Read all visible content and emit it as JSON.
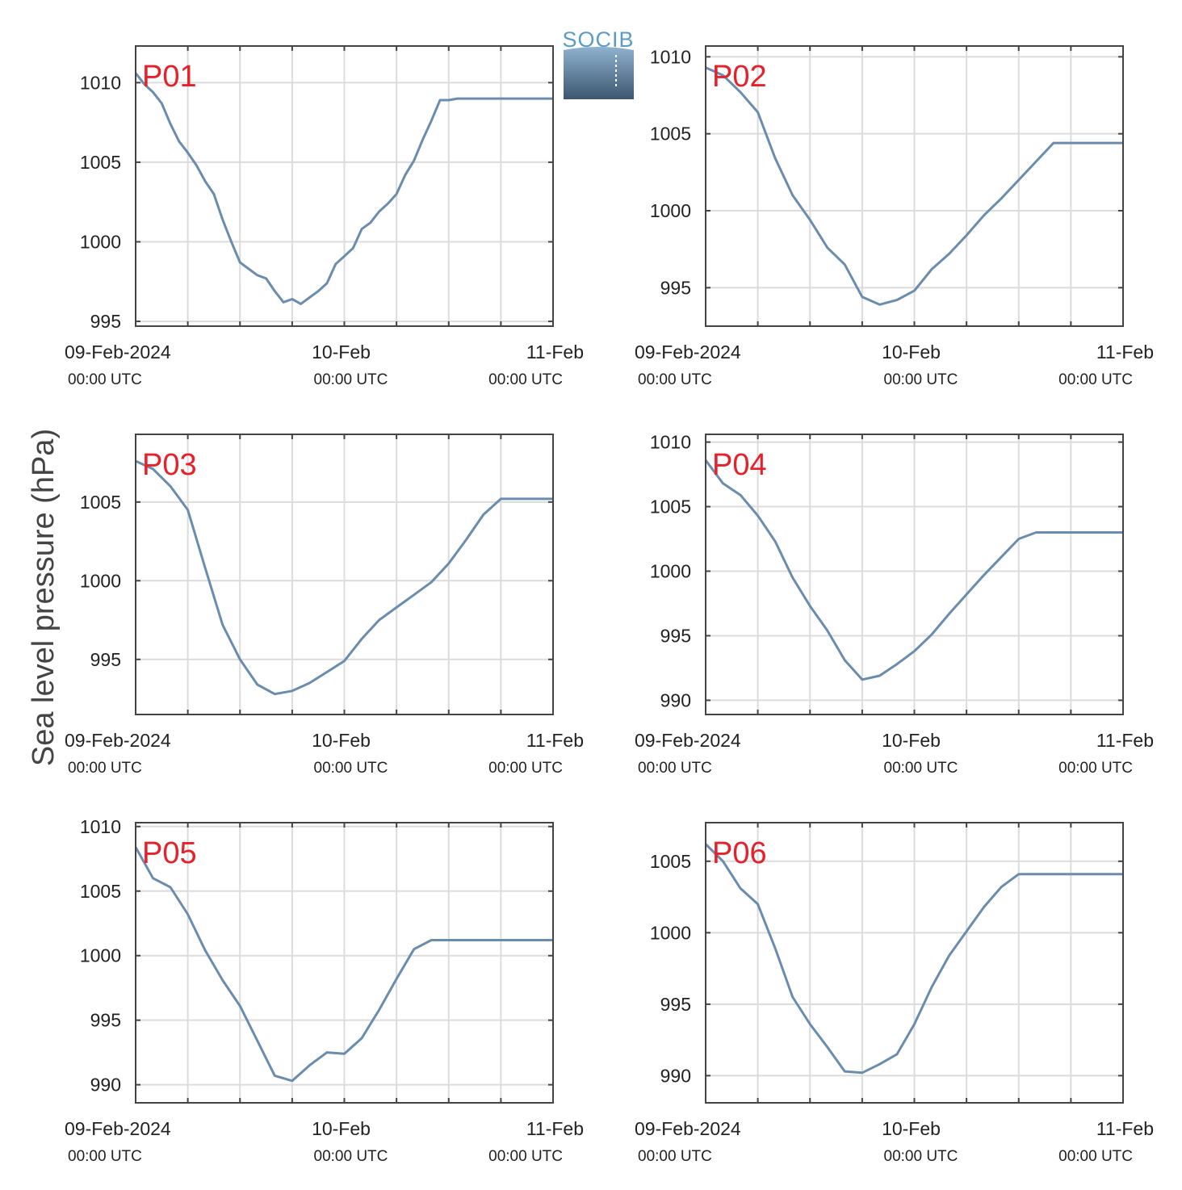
{
  "ylabel": "Sea level pressure (hPa)",
  "logo": {
    "text": "SOCIB",
    "color": "#5a9cc8"
  },
  "colors": {
    "series": "#6a8caf",
    "panel_label": "#e8202a",
    "grid": "#dcdcdc",
    "axis": "#444444"
  },
  "x_axis": {
    "range": [
      "2024-02-09T00:00",
      "2024-02-11T00:00"
    ],
    "gridlines_every_hours": 6,
    "ticks": [
      {
        "date": "09-Feb-2024",
        "time": "00:00 UTC",
        "hours": 0
      },
      {
        "date": "10-Feb",
        "time": "00:00 UTC",
        "hours": 24
      },
      {
        "date": "11-Feb",
        "time": "00:00 UTC",
        "hours": 48
      }
    ]
  },
  "chart_data": [
    {
      "type": "line",
      "label": "P01",
      "ylim": [
        994.7,
        1012.3
      ],
      "yticks": [
        995,
        1000,
        1005,
        1010
      ],
      "x_hours": [
        0,
        1,
        2,
        3,
        4,
        5,
        6,
        7,
        8,
        9,
        10,
        11,
        12,
        13,
        14,
        15,
        16,
        17,
        18,
        19,
        20,
        21,
        22,
        23,
        24,
        25,
        26,
        27,
        28,
        29,
        30,
        31,
        32,
        33,
        34,
        35,
        36,
        37,
        38,
        39,
        40,
        41,
        42,
        43,
        44,
        45,
        46,
        47,
        48
      ],
      "values": [
        1010.6,
        1009.9,
        1009.4,
        1008.7,
        1007.4,
        1006.3,
        1005.6,
        1004.8,
        1003.8,
        1003.0,
        1001.4,
        1000.0,
        998.7,
        998.3,
        997.9,
        997.7,
        996.9,
        996.2,
        996.4,
        996.1,
        996.5,
        996.9,
        997.4,
        998.6,
        999.1,
        999.6,
        1000.8,
        1001.2,
        1001.9,
        1002.4,
        1003.0,
        1004.2,
        1005.1,
        1006.4,
        1007.6,
        1008.9,
        1008.9,
        1009,
        1009,
        1009,
        1009,
        1009,
        1009,
        1009,
        1009,
        1009,
        1009,
        1009,
        1009
      ]
    },
    {
      "type": "line",
      "label": "P02",
      "ylim": [
        992.5,
        1010.7
      ],
      "yticks": [
        995,
        1000,
        1005,
        1010
      ],
      "x_hours": [
        0,
        2,
        4,
        6,
        8,
        10,
        12,
        14,
        16,
        18,
        20,
        22,
        24,
        26,
        28,
        30,
        32,
        34,
        36,
        38,
        40,
        42,
        44,
        46,
        48
      ],
      "values": [
        1009.3,
        1008.8,
        1007.7,
        1006.4,
        1003.4,
        1001.0,
        999.4,
        997.6,
        996.5,
        994.4,
        993.9,
        994.2,
        994.8,
        996.2,
        997.2,
        998.4,
        999.7,
        1000.8,
        1002.0,
        1003.2,
        1004.4,
        1004.4,
        1004.4,
        1004.4,
        1004.4
      ]
    },
    {
      "type": "line",
      "label": "P03",
      "ylim": [
        991.5,
        1009.3
      ],
      "yticks": [
        995,
        1000,
        1005
      ],
      "x_hours": [
        0,
        2,
        4,
        6,
        8,
        10,
        12,
        14,
        16,
        18,
        20,
        22,
        24,
        26,
        28,
        30,
        32,
        34,
        36,
        38,
        40,
        42,
        44,
        46,
        48
      ],
      "values": [
        1007.6,
        1007.1,
        1006.0,
        1004.5,
        1000.8,
        997.2,
        995.0,
        993.4,
        992.8,
        993.0,
        993.5,
        994.2,
        994.9,
        996.3,
        997.5,
        998.3,
        999.1,
        999.9,
        1001.1,
        1002.6,
        1004.2,
        1005.2,
        1005.2,
        1005.2,
        1005.2
      ]
    },
    {
      "type": "line",
      "label": "P04",
      "ylim": [
        988.9,
        1010.6
      ],
      "yticks": [
        990,
        995,
        1000,
        1005,
        1010
      ],
      "x_hours": [
        0,
        2,
        4,
        6,
        8,
        10,
        12,
        14,
        16,
        18,
        20,
        22,
        24,
        26,
        28,
        30,
        32,
        34,
        36,
        38,
        40,
        42,
        44,
        46,
        48
      ],
      "values": [
        1008.6,
        1006.8,
        1005.9,
        1004.3,
        1002.3,
        999.5,
        997.3,
        995.4,
        993.1,
        991.6,
        991.9,
        992.8,
        993.8,
        995.1,
        996.7,
        998.2,
        999.7,
        1001.1,
        1002.5,
        1003.0,
        1003.0,
        1003.0,
        1003.0,
        1003.0,
        1003.0
      ]
    },
    {
      "type": "line",
      "label": "P05",
      "ylim": [
        988.6,
        1010.3
      ],
      "yticks": [
        990,
        995,
        1000,
        1005,
        1010
      ],
      "x_hours": [
        0,
        2,
        4,
        6,
        8,
        10,
        12,
        14,
        16,
        18,
        20,
        22,
        24,
        26,
        28,
        30,
        32,
        34,
        36,
        38,
        40,
        42,
        44,
        46,
        48
      ],
      "values": [
        1008.4,
        1006.0,
        1005.3,
        1003.2,
        1000.4,
        998.1,
        996.1,
        993.4,
        990.7,
        990.3,
        991.5,
        992.5,
        992.4,
        993.6,
        995.8,
        998.2,
        1000.5,
        1001.2,
        1001.2,
        1001.2,
        1001.2,
        1001.2,
        1001.2,
        1001.2,
        1001.2
      ]
    },
    {
      "type": "line",
      "label": "P06",
      "ylim": [
        988.1,
        1007.7
      ],
      "yticks": [
        990,
        995,
        1000,
        1005
      ],
      "x_hours": [
        0,
        2,
        4,
        6,
        8,
        10,
        12,
        14,
        16,
        18,
        20,
        22,
        24,
        26,
        28,
        30,
        32,
        34,
        36,
        38,
        40,
        42,
        44,
        46,
        48
      ],
      "values": [
        1006.2,
        1005.0,
        1003.1,
        1002.0,
        998.9,
        995.5,
        993.6,
        992.0,
        990.3,
        990.2,
        990.8,
        991.5,
        993.6,
        996.2,
        998.4,
        1000.1,
        1001.8,
        1003.2,
        1004.1,
        1004.1,
        1004.1,
        1004.1,
        1004.1,
        1004.1,
        1004.1
      ]
    }
  ]
}
